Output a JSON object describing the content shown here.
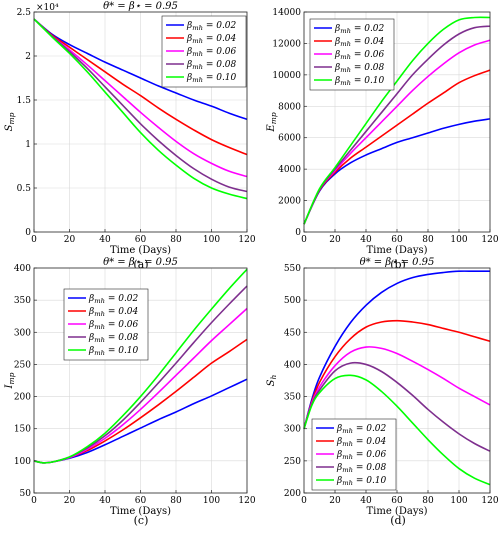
{
  "figure": {
    "captions": [
      "(a)",
      "(b)",
      "(c)",
      "(d)"
    ]
  },
  "chart_data": [
    {
      "type": "line",
      "title": "θ* = β⋆ = 0.95",
      "xlabel": "Time (Days)",
      "ylabel": "S_mp",
      "y_multiplier": "×10⁴",
      "xlim": [
        0,
        120
      ],
      "ylim": [
        0,
        2.5
      ],
      "xticks": [
        0,
        20,
        40,
        60,
        80,
        100,
        120
      ],
      "yticks": [
        0,
        0.5,
        1,
        1.5,
        2,
        2.5
      ],
      "ytick_labels": [
        "0",
        "0.5",
        "1",
        "1.5",
        "2",
        "2.5"
      ],
      "grid": true,
      "legend_position": "top-right",
      "x": [
        0,
        10,
        20,
        30,
        40,
        50,
        60,
        70,
        80,
        90,
        100,
        110,
        120
      ],
      "series": [
        {
          "name": "βmh = 0.02",
          "color": "#0000ff",
          "values": [
            2.42,
            2.25,
            2.13,
            2.03,
            1.93,
            1.84,
            1.75,
            1.66,
            1.58,
            1.5,
            1.43,
            1.35,
            1.28
          ]
        },
        {
          "name": "βmh = 0.04",
          "color": "#ff0000",
          "values": [
            2.42,
            2.24,
            2.1,
            1.96,
            1.82,
            1.68,
            1.55,
            1.41,
            1.28,
            1.16,
            1.05,
            0.96,
            0.88
          ]
        },
        {
          "name": "βmh = 0.06",
          "color": "#ff00ff",
          "values": [
            2.42,
            2.23,
            2.07,
            1.9,
            1.72,
            1.54,
            1.36,
            1.19,
            1.03,
            0.89,
            0.78,
            0.69,
            0.63
          ]
        },
        {
          "name": "βmh = 0.08",
          "color": "#7e2f8e",
          "values": [
            2.42,
            2.23,
            2.05,
            1.86,
            1.65,
            1.44,
            1.23,
            1.04,
            0.87,
            0.72,
            0.6,
            0.51,
            0.46
          ]
        },
        {
          "name": "βmh = 0.10",
          "color": "#00ff00",
          "values": [
            2.42,
            2.22,
            2.03,
            1.82,
            1.59,
            1.36,
            1.13,
            0.93,
            0.76,
            0.61,
            0.5,
            0.43,
            0.38
          ]
        }
      ]
    },
    {
      "type": "line",
      "title": "",
      "xlabel": "Time (Days)",
      "ylabel": "E_mp",
      "xlim": [
        0,
        120
      ],
      "ylim": [
        0,
        14000
      ],
      "xticks": [
        0,
        20,
        40,
        60,
        80,
        100,
        120
      ],
      "yticks": [
        0,
        2000,
        4000,
        6000,
        8000,
        10000,
        12000,
        14000
      ],
      "ytick_labels": [
        "0",
        "2000",
        "4000",
        "6000",
        "8000",
        "10000",
        "12000",
        "14000"
      ],
      "grid": true,
      "legend_position": "top-left",
      "x": [
        0,
        10,
        20,
        30,
        40,
        50,
        60,
        70,
        80,
        90,
        100,
        110,
        120
      ],
      "series": [
        {
          "name": "βmh = 0.02",
          "color": "#0000ff",
          "values": [
            500,
            2600,
            3700,
            4400,
            4900,
            5300,
            5700,
            6000,
            6300,
            6600,
            6850,
            7050,
            7200
          ]
        },
        {
          "name": "βmh = 0.04",
          "color": "#ff0000",
          "values": [
            500,
            2650,
            3800,
            4700,
            5400,
            6100,
            6800,
            7500,
            8200,
            8850,
            9500,
            9950,
            10300
          ]
        },
        {
          "name": "βmh = 0.06",
          "color": "#ff00ff",
          "values": [
            500,
            2700,
            3900,
            5000,
            6000,
            7000,
            8000,
            9000,
            9900,
            10700,
            11400,
            11900,
            12200
          ]
        },
        {
          "name": "βmh = 0.08",
          "color": "#7e2f8e",
          "values": [
            500,
            2700,
            4000,
            5200,
            6400,
            7600,
            8800,
            10000,
            11000,
            11900,
            12600,
            13000,
            13100
          ]
        },
        {
          "name": "βmh = 0.10",
          "color": "#00ff00",
          "values": [
            500,
            2750,
            4100,
            5500,
            6900,
            8300,
            9600,
            10900,
            12000,
            12900,
            13500,
            13650,
            13650
          ]
        }
      ]
    },
    {
      "type": "line",
      "title": "θ* = β⋆ = 0.95",
      "xlabel": "Time (Days)",
      "ylabel": "I_mp",
      "xlim": [
        0,
        120
      ],
      "ylim": [
        50,
        400
      ],
      "xticks": [
        0,
        20,
        40,
        60,
        80,
        100,
        120
      ],
      "yticks": [
        50,
        100,
        150,
        200,
        250,
        300,
        350,
        400
      ],
      "ytick_labels": [
        "50",
        "100",
        "150",
        "200",
        "250",
        "300",
        "350",
        "400"
      ],
      "grid": true,
      "legend_position": "top-left",
      "x": [
        0,
        5,
        10,
        20,
        30,
        40,
        50,
        60,
        70,
        80,
        90,
        100,
        110,
        120
      ],
      "series": [
        {
          "name": "βmh = 0.02",
          "color": "#0000ff",
          "values": [
            100,
            97,
            98,
            104,
            113,
            125,
            138,
            151,
            164,
            176,
            189,
            201,
            214,
            227
          ]
        },
        {
          "name": "βmh = 0.04",
          "color": "#ff0000",
          "values": [
            100,
            97,
            98,
            105,
            116,
            131,
            148,
            167,
            187,
            208,
            230,
            252,
            270,
            289
          ]
        },
        {
          "name": "βmh = 0.06",
          "color": "#ff00ff",
          "values": [
            100,
            97,
            98,
            105,
            118,
            135,
            156,
            180,
            206,
            233,
            260,
            287,
            312,
            337
          ]
        },
        {
          "name": "βmh = 0.08",
          "color": "#7e2f8e",
          "values": [
            100,
            97,
            98,
            106,
            120,
            139,
            163,
            191,
            221,
            252,
            284,
            315,
            344,
            372
          ]
        },
        {
          "name": "βmh = 0.10",
          "color": "#00ff00",
          "values": [
            100,
            97,
            98,
            106,
            122,
            143,
            170,
            200,
            233,
            268,
            303,
            336,
            368,
            398
          ]
        }
      ]
    },
    {
      "type": "line",
      "title": "θ* = β⋆ = 0.95",
      "xlabel": "Time (Days)",
      "ylabel": "S_h",
      "xlim": [
        0,
        120
      ],
      "ylim": [
        200,
        550
      ],
      "xticks": [
        0,
        20,
        40,
        60,
        80,
        100,
        120
      ],
      "yticks": [
        200,
        250,
        300,
        350,
        400,
        450,
        500,
        550
      ],
      "ytick_labels": [
        "200",
        "250",
        "300",
        "350",
        "400",
        "450",
        "500",
        "550"
      ],
      "grid": true,
      "legend_position": "bottom-left",
      "x": [
        0,
        5,
        10,
        20,
        30,
        40,
        50,
        60,
        70,
        80,
        90,
        100,
        110,
        120
      ],
      "series": [
        {
          "name": "βmh = 0.02",
          "color": "#0000ff",
          "values": [
            300,
            345,
            380,
            428,
            465,
            492,
            512,
            526,
            535,
            540,
            543,
            545,
            545,
            545
          ]
        },
        {
          "name": "βmh = 0.04",
          "color": "#ff0000",
          "values": [
            300,
            342,
            372,
            412,
            440,
            458,
            466,
            468,
            466,
            462,
            456,
            450,
            443,
            436
          ]
        },
        {
          "name": "βmh = 0.06",
          "color": "#ff00ff",
          "values": [
            300,
            340,
            365,
            398,
            419,
            427,
            425,
            417,
            405,
            392,
            378,
            363,
            350,
            337
          ]
        },
        {
          "name": "βmh = 0.08",
          "color": "#7e2f8e",
          "values": [
            300,
            338,
            360,
            390,
            402,
            400,
            389,
            372,
            352,
            330,
            310,
            292,
            277,
            265
          ]
        },
        {
          "name": "βmh = 0.10",
          "color": "#00ff00",
          "values": [
            300,
            336,
            356,
            378,
            383,
            376,
            358,
            335,
            309,
            283,
            259,
            238,
            223,
            213
          ]
        }
      ]
    }
  ]
}
